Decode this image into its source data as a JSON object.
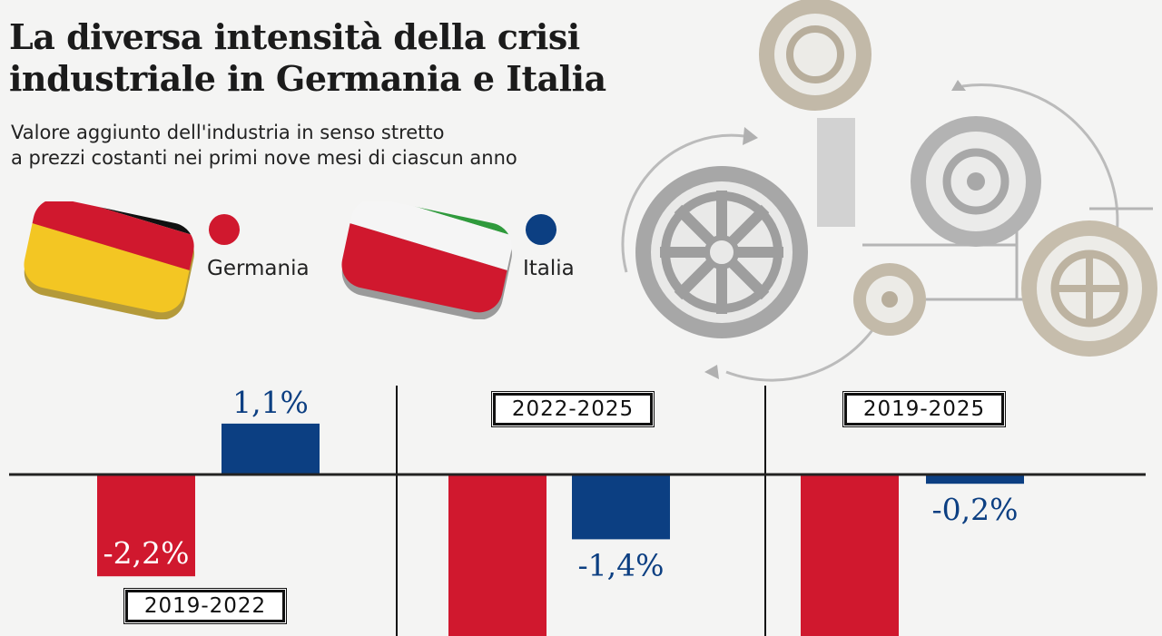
{
  "title_line1": "La diversa intensità della crisi",
  "title_line2": "industriale in Germania e Italia",
  "subtitle_line1": "Valore aggiunto dell'industria in senso stretto",
  "subtitle_line2": "a prezzi costanti nei primi nove mesi di ciascun anno",
  "colors": {
    "germania": "#d0182e",
    "italia": "#0c3f82"
  },
  "chart_data": {
    "type": "bar",
    "title": "La diversa intensità della crisi industriale in Germania e Italia",
    "subtitle": "Valore aggiunto dell'industria in senso stretto a prezzi costanti nei primi nove mesi di ciascun anno",
    "categories": [
      "2019-2022",
      "2022-2025",
      "2019-2025"
    ],
    "series": [
      {
        "name": "Germania",
        "values": [
          -2.2,
          null,
          null
        ],
        "labels": [
          "-2,2%",
          "",
          ""
        ]
      },
      {
        "name": "Italia",
        "values": [
          1.1,
          -1.4,
          -0.2
        ],
        "labels": [
          "1,1%",
          "-1,4%",
          "-0,2%"
        ]
      }
    ],
    "unit": "%",
    "legend": "top-left",
    "grid": false
  }
}
